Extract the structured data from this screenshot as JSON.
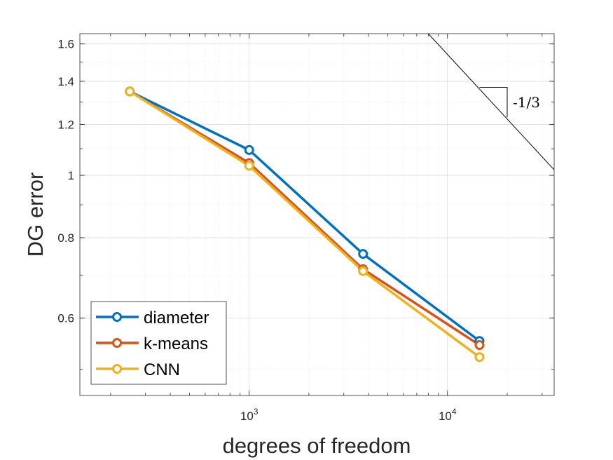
{
  "chart_data": {
    "type": "line",
    "xscale": "log",
    "yscale": "log",
    "xlabel": "degrees of freedom",
    "ylabel": "DG error",
    "xlim": [
      140,
      34500
    ],
    "ylim": [
      0.455,
      1.66
    ],
    "grid": true,
    "minor_grid": true,
    "legend_position": "bottom-left",
    "x_ticks": [
      {
        "value": 1000,
        "base": "10",
        "exp": "3"
      },
      {
        "value": 10000,
        "base": "10",
        "exp": "4"
      }
    ],
    "y_ticks": [
      {
        "value": 0.6,
        "label": "0.6"
      },
      {
        "value": 0.8,
        "label": "0.8"
      },
      {
        "value": 1.0,
        "label": "1"
      },
      {
        "value": 1.2,
        "label": "1.2"
      },
      {
        "value": 1.4,
        "label": "1.4"
      },
      {
        "value": 1.6,
        "label": "1.6"
      }
    ],
    "x": [
      250,
      1000,
      3750,
      14500
    ],
    "series": [
      {
        "name": "diameter",
        "color": "#0072BD",
        "values": [
          1.35,
          1.095,
          0.755,
          0.553
        ]
      },
      {
        "name": "k-means",
        "color": "#D95319",
        "values": [
          1.35,
          1.045,
          0.715,
          0.545
        ]
      },
      {
        "name": "CNN",
        "color": "#EDB120",
        "values": [
          1.35,
          1.035,
          0.71,
          0.522
        ]
      }
    ],
    "slope_triangle": {
      "label": "-1/3",
      "x_left": 14500,
      "x_right": 20000,
      "y_top": 1.37
    },
    "reference_line": {
      "x_start": 8000,
      "x_end": 34500,
      "slope": -0.3333
    }
  }
}
